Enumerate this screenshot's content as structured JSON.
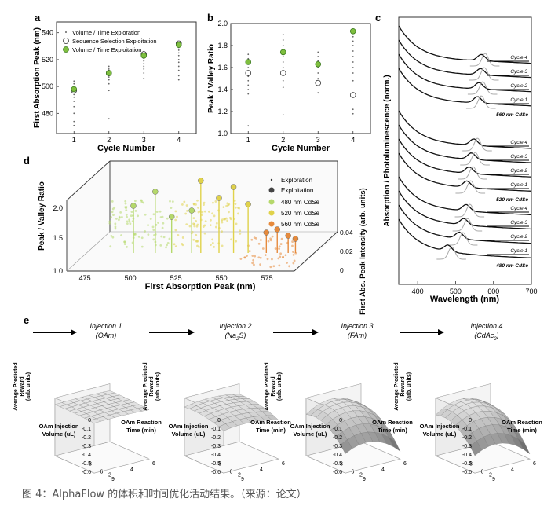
{
  "caption": "图 4：AlphaFlow 的体积和时间优化活动结果。（来源：论文）",
  "panel_labels": {
    "a": "a",
    "b": "b",
    "c": "c",
    "d": "d",
    "e": "e"
  },
  "colors": {
    "exploitation_green": "#7fbf3f",
    "green_edge": "#3b7a1e",
    "c480": "#b5d86b",
    "c520": "#e0d24a",
    "c560": "#e68a3c",
    "spectra_black": "#111111",
    "spectra_gray": "#aaaaaa"
  },
  "chart_data": [
    {
      "id": "a",
      "type": "scatter",
      "xlabel": "Cycle Number",
      "ylabel": "First Absorption Peak (nm)",
      "xlim": [
        0.5,
        4.5
      ],
      "ylim": [
        465,
        548
      ],
      "xticks": [
        1,
        2,
        3,
        4
      ],
      "yticks": [
        480,
        500,
        520,
        540
      ],
      "legend": [
        "Volume / Time Exploration",
        "Sequence Selection Exploitation",
        "Volume / Time Exploitation"
      ],
      "legend_position": "top-left",
      "series": [
        {
          "name": "Volume / Time Exploration",
          "points": [
            [
              1,
              471
            ],
            [
              1,
              474
            ],
            [
              1,
              480
            ],
            [
              1,
              485
            ],
            [
              1,
              489
            ],
            [
              1,
              492
            ],
            [
              1,
              494
            ],
            [
              1,
              496
            ],
            [
              1,
              497
            ],
            [
              1,
              499
            ],
            [
              1,
              500
            ],
            [
              1,
              502
            ],
            [
              1,
              504
            ],
            [
              2,
              476
            ],
            [
              2,
              497
            ],
            [
              2,
              502
            ],
            [
              2,
              505
            ],
            [
              2,
              507
            ],
            [
              2,
              508
            ],
            [
              2,
              509
            ],
            [
              2,
              511
            ],
            [
              2,
              512
            ],
            [
              2,
              513
            ],
            [
              2,
              515
            ],
            [
              3,
              506
            ],
            [
              3,
              510
            ],
            [
              3,
              513
            ],
            [
              3,
              515
            ],
            [
              3,
              517
            ],
            [
              3,
              519
            ],
            [
              3,
              521
            ],
            [
              3,
              522
            ],
            [
              3,
              524
            ],
            [
              3,
              526
            ],
            [
              4,
              505
            ],
            [
              4,
              508
            ],
            [
              4,
              512
            ],
            [
              4,
              515
            ],
            [
              4,
              518
            ],
            [
              4,
              520
            ],
            [
              4,
              523
            ],
            [
              4,
              525
            ],
            [
              4,
              527
            ],
            [
              4,
              529
            ],
            [
              4,
              532
            ]
          ]
        },
        {
          "name": "Sequence Selection Exploitation",
          "points": [
            [
              1,
              497
            ],
            [
              2,
              510
            ],
            [
              3,
              524
            ],
            [
              4,
              532
            ]
          ]
        },
        {
          "name": "Volume / Time Exploitation",
          "points": [
            [
              1,
              498
            ],
            [
              2,
              510
            ],
            [
              3,
              523
            ],
            [
              4,
              531
            ]
          ]
        }
      ]
    },
    {
      "id": "b",
      "type": "scatter",
      "xlabel": "Cycle Number",
      "ylabel": "Peak / Valley Ratio",
      "xlim": [
        0.5,
        4.5
      ],
      "ylim": [
        1.0,
        2.0
      ],
      "xticks": [
        1,
        2,
        3,
        4
      ],
      "yticks": [
        1.0,
        1.2,
        1.4,
        1.6,
        1.8,
        2.0
      ],
      "series": [
        {
          "name": "Volume / Time Exploration",
          "points": [
            [
              1,
              1.07
            ],
            [
              1,
              1.36
            ],
            [
              1,
              1.4
            ],
            [
              1,
              1.44
            ],
            [
              1,
              1.48
            ],
            [
              1,
              1.52
            ],
            [
              1,
              1.56
            ],
            [
              1,
              1.6
            ],
            [
              1,
              1.64
            ],
            [
              1,
              1.68
            ],
            [
              1,
              1.72
            ],
            [
              2,
              1.17
            ],
            [
              2,
              1.42
            ],
            [
              2,
              1.48
            ],
            [
              2,
              1.55
            ],
            [
              2,
              1.6
            ],
            [
              2,
              1.65
            ],
            [
              2,
              1.7
            ],
            [
              2,
              1.75
            ],
            [
              2,
              1.8
            ],
            [
              2,
              1.85
            ],
            [
              2,
              1.9
            ],
            [
              3,
              1.37
            ],
            [
              3,
              1.45
            ],
            [
              3,
              1.5
            ],
            [
              3,
              1.55
            ],
            [
              3,
              1.6
            ],
            [
              3,
              1.63
            ],
            [
              3,
              1.66
            ],
            [
              3,
              1.7
            ],
            [
              3,
              1.74
            ],
            [
              4,
              1.18
            ],
            [
              4,
              1.22
            ],
            [
              4,
              1.48
            ],
            [
              4,
              1.55
            ],
            [
              4,
              1.6
            ],
            [
              4,
              1.65
            ],
            [
              4,
              1.7
            ],
            [
              4,
              1.75
            ],
            [
              4,
              1.8
            ],
            [
              4,
              1.84
            ],
            [
              4,
              1.88
            ]
          ]
        },
        {
          "name": "Sequence Selection Exploitation",
          "points": [
            [
              1,
              1.55
            ],
            [
              2,
              1.55
            ],
            [
              3,
              1.46
            ],
            [
              4,
              1.35
            ]
          ]
        },
        {
          "name": "Volume / Time Exploitation",
          "points": [
            [
              1,
              1.65
            ],
            [
              2,
              1.74
            ],
            [
              3,
              1.63
            ],
            [
              4,
              1.93
            ]
          ]
        }
      ]
    },
    {
      "id": "c",
      "type": "line",
      "xlabel": "Wavelength (nm)",
      "ylabel": "Absorption / Photoluminescence (norm.)",
      "xlim": [
        350,
        700
      ],
      "xticks": [
        400,
        500,
        600,
        700
      ],
      "groups": [
        {
          "name": "560 nm CdSe",
          "cycles": [
            "Cycle 4",
            "Cycle 3",
            "Cycle 2",
            "Cycle 1"
          ],
          "peaks": [
            568,
            566,
            562,
            558
          ]
        },
        {
          "name": "520 nm CdSe",
          "cycles": [
            "Cycle 4",
            "Cycle 3",
            "Cycle 2",
            "Cycle 1"
          ],
          "peaks": [
            548,
            542,
            536,
            530
          ]
        },
        {
          "name": "480 nm CdSe",
          "cycles": [
            "Cycle 4",
            "Cycle 3",
            "Cycle 2",
            "Cycle 1"
          ],
          "peaks": [
            528,
            522,
            510,
            480
          ]
        }
      ]
    },
    {
      "id": "d",
      "type": "scatter",
      "xlabel": "First Absorption Peak (nm)",
      "ylabel": "Peak / Valley Ratio",
      "zlabel": "First Abs. Peak Intensity (arb. units)",
      "xticks": [
        475,
        500,
        525,
        550,
        575
      ],
      "yticks": [
        1.0,
        1.5,
        2.0
      ],
      "zticks": [
        0,
        0.02,
        0.04
      ],
      "legend": [
        "Exploration",
        "Exploitation",
        "480 nm CdSe",
        "520 nm CdSe",
        "560 nm CdSe"
      ],
      "legend_position": "top-right",
      "stems": [
        {
          "x": 505,
          "group": "480 nm CdSe",
          "h": 78
        },
        {
          "x": 493,
          "group": "480 nm CdSe",
          "h": 60
        },
        {
          "x": 530,
          "group": "520 nm CdSe",
          "h": 92
        },
        {
          "x": 540,
          "group": "520 nm CdSe",
          "h": 70
        },
        {
          "x": 548,
          "group": "520 nm CdSe",
          "h": 84
        },
        {
          "x": 556,
          "group": "520 nm CdSe",
          "h": 62
        },
        {
          "x": 525,
          "group": "480 nm CdSe",
          "h": 54
        },
        {
          "x": 514,
          "group": "480 nm CdSe",
          "h": 46
        },
        {
          "x": 566,
          "group": "560 nm CdSe",
          "h": 26
        },
        {
          "x": 578,
          "group": "560 nm CdSe",
          "h": 22
        },
        {
          "x": 582,
          "group": "560 nm CdSe",
          "h": 18
        },
        {
          "x": 572,
          "group": "560 nm CdSe",
          "h": 30
        }
      ]
    },
    {
      "id": "e",
      "type": "surface",
      "zlabel": "Average Predicted Reward (arb. units)",
      "xlabel": "OAm Injection Volume (uL)",
      "ylabel": "OAm Reaction Time (min)",
      "zticks": [
        0,
        -0.1,
        -0.2,
        -0.3,
        -0.4,
        -0.5,
        -0.6
      ],
      "volume_ticks": [
        9,
        6,
        3
      ],
      "time_ticks": [
        2,
        4,
        6
      ],
      "surfaces": [
        {
          "title": "Injection 1",
          "subtitle": "(OAm)",
          "curvature": 0.05
        },
        {
          "title": "Injection 2",
          "subtitle_main": "(Na",
          "subtitle_sub": "2",
          "subtitle_end": "S)",
          "curvature": 0.25
        },
        {
          "title": "Injection 3",
          "subtitle": "(FAm)",
          "curvature": 0.85
        },
        {
          "title": "Injection 4",
          "subtitle_main": "(CdAc",
          "subtitle_sub": "2",
          "subtitle_end": ")",
          "curvature": 0.9
        }
      ]
    }
  ]
}
